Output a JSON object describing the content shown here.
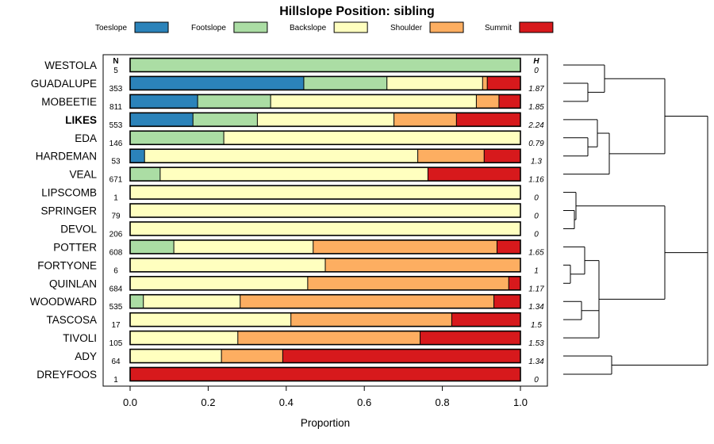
{
  "chart_data": {
    "type": "bar",
    "orientation": "horizontal-stacked",
    "title": "Hillslope Position: sibling",
    "xlabel": "Proportion",
    "xlim": [
      0,
      1
    ],
    "xticks": [
      "0.0",
      "0.2",
      "0.4",
      "0.6",
      "0.8",
      "1.0"
    ],
    "n_header": "N",
    "h_header": "H",
    "highlight": "LIKES",
    "series": [
      {
        "name": "Toeslope",
        "color": "#2b83ba"
      },
      {
        "name": "Footslope",
        "color": "#abdda4"
      },
      {
        "name": "Backslope",
        "color": "#ffffbf"
      },
      {
        "name": "Shoulder",
        "color": "#fdae61"
      },
      {
        "name": "Summit",
        "color": "#d7191c"
      }
    ],
    "rows": [
      {
        "name": "WESTOLA",
        "n": "5",
        "h": "0",
        "values": [
          0,
          1,
          0,
          0,
          0
        ]
      },
      {
        "name": "GUADALUPE",
        "n": "353",
        "h": "1.87",
        "values": [
          0.445,
          0.213,
          0.245,
          0.012,
          0.085
        ]
      },
      {
        "name": "MOBEETIE",
        "n": "811",
        "h": "1.85",
        "values": [
          0.173,
          0.187,
          0.527,
          0.058,
          0.055
        ]
      },
      {
        "name": "LIKES",
        "n": "553",
        "h": "2.24",
        "values": [
          0.161,
          0.165,
          0.35,
          0.16,
          0.164
        ]
      },
      {
        "name": "EDA",
        "n": "146",
        "h": "0.79",
        "values": [
          0,
          0.24,
          0.76,
          0,
          0
        ]
      },
      {
        "name": "HARDEMAN",
        "n": "53",
        "h": "1.3",
        "values": [
          0.037,
          0,
          0.7,
          0.17,
          0.093
        ]
      },
      {
        "name": "VEAL",
        "n": "671",
        "h": "1.16",
        "values": [
          0,
          0.077,
          0.686,
          0,
          0.237
        ]
      },
      {
        "name": "LIPSCOMB",
        "n": "1",
        "h": "0",
        "values": [
          0,
          0,
          1,
          0,
          0
        ]
      },
      {
        "name": "SPRINGER",
        "n": "79",
        "h": "0",
        "values": [
          0,
          0,
          1,
          0,
          0
        ]
      },
      {
        "name": "DEVOL",
        "n": "206",
        "h": "0",
        "values": [
          0,
          0,
          1,
          0,
          0
        ]
      },
      {
        "name": "POTTER",
        "n": "608",
        "h": "1.65",
        "values": [
          0,
          0.112,
          0.357,
          0.471,
          0.06
        ]
      },
      {
        "name": "FORTYONE",
        "n": "6",
        "h": "1",
        "values": [
          0,
          0,
          0.5,
          0.5,
          0
        ]
      },
      {
        "name": "QUINLAN",
        "n": "684",
        "h": "1.17",
        "values": [
          0,
          0,
          0.455,
          0.515,
          0.03
        ]
      },
      {
        "name": "WOODWARD",
        "n": "535",
        "h": "1.34",
        "values": [
          0,
          0.034,
          0.248,
          0.65,
          0.068
        ]
      },
      {
        "name": "TASCOSA",
        "n": "17",
        "h": "1.5",
        "values": [
          0,
          0,
          0.412,
          0.412,
          0.176
        ]
      },
      {
        "name": "TIVOLI",
        "n": "105",
        "h": "1.53",
        "values": [
          0,
          0,
          0.276,
          0.467,
          0.257
        ]
      },
      {
        "name": "ADY",
        "n": "64",
        "h": "1.34",
        "values": [
          0,
          0,
          0.234,
          0.157,
          0.609
        ]
      },
      {
        "name": "DREYFOOS",
        "n": "1",
        "h": "0",
        "values": [
          0,
          0,
          0,
          0,
          1
        ]
      }
    ]
  }
}
